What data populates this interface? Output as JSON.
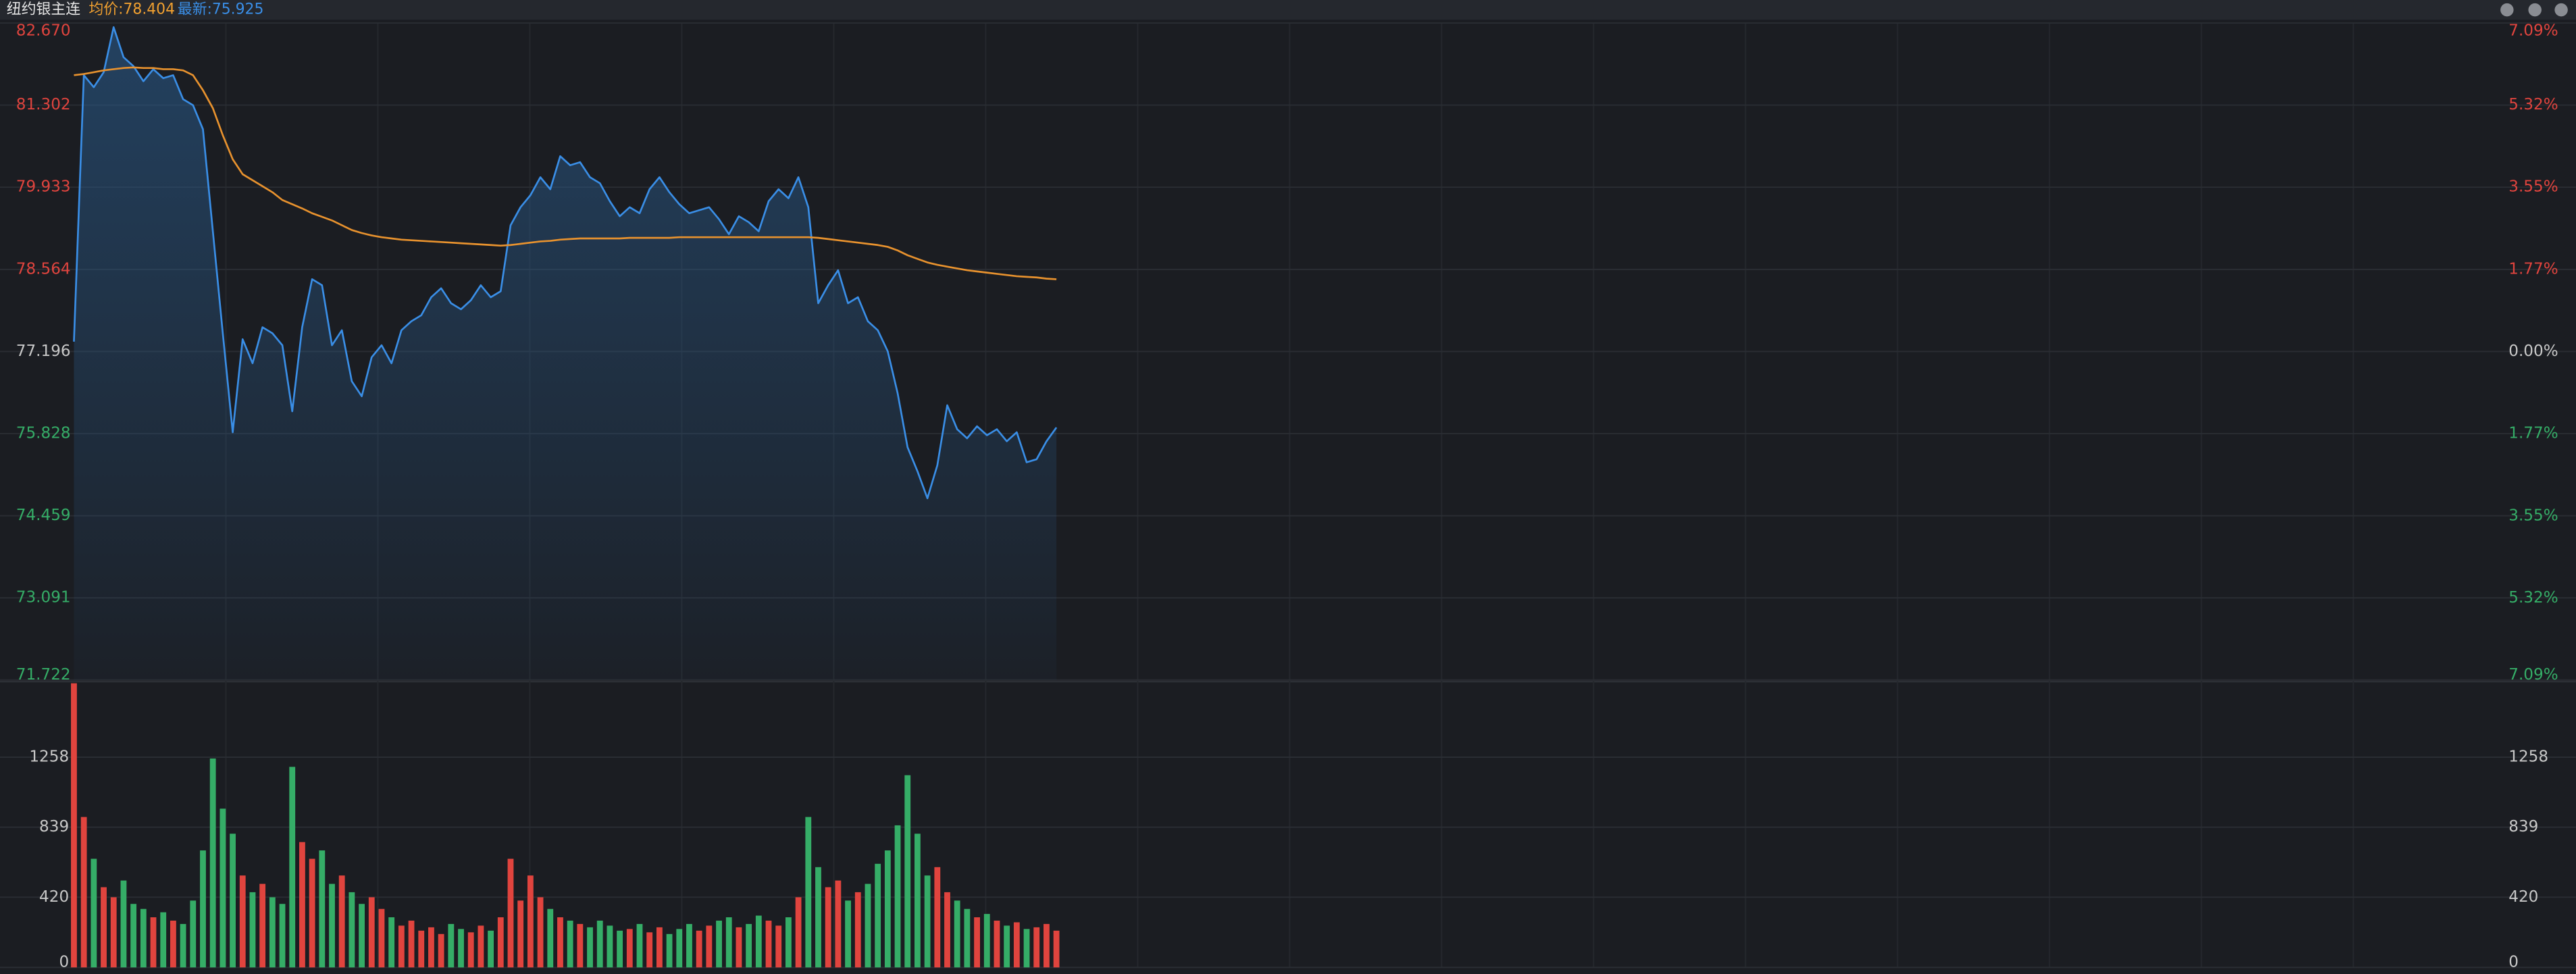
{
  "header": {
    "title": "纽约银主连",
    "avg": "均价:78.404",
    "latest": "最新:75.925"
  },
  "chart_data": [
    {
      "type": "line",
      "xlim": [
        0,
        245
      ],
      "ylim": [
        71.722,
        82.67
      ],
      "yticks": [
        {
          "value": 82.67,
          "label": "82.670"
        },
        81.302,
        79.933,
        78.564,
        77.196,
        75.828,
        74.459,
        73.091,
        71.722
      ],
      "y2lim": [
        -7.09,
        7.09
      ],
      "y2ticks": [
        {
          "value": 7.09,
          "label": "7.09%"
        },
        {
          "value": 5.32,
          "label": "5.32%"
        },
        {
          "value": 3.55,
          "label": "3.55%"
        },
        {
          "value": 1.77,
          "label": "1.77%"
        },
        {
          "value": 0,
          "label": "0.00%"
        },
        {
          "value": -1.77,
          "label": "1.77%"
        },
        {
          "value": -3.55,
          "label": "3.55%"
        },
        {
          "value": -5.32,
          "label": "5.32%"
        },
        {
          "value": -7.09,
          "label": "7.09%"
        }
      ],
      "grid": true,
      "up_color": "#e0443e",
      "down_color": "#35ad67",
      "flat_color": "#c8c8c8",
      "series": [
        {
          "color": "#3a8ee6",
          "area": true,
          "values": [
            77.36,
            81.8,
            81.6,
            81.85,
            82.6,
            82.1,
            81.95,
            81.7,
            81.9,
            81.75,
            81.8,
            81.4,
            81.3,
            80.9,
            79.2,
            77.5,
            75.85,
            77.4,
            77.0,
            77.6,
            77.5,
            77.3,
            76.2,
            77.6,
            78.4,
            78.3,
            77.3,
            77.55,
            76.7,
            76.45,
            77.1,
            77.3,
            77.0,
            77.55,
            77.7,
            77.8,
            78.1,
            78.25,
            78.0,
            77.9,
            78.05,
            78.3,
            78.1,
            78.2,
            79.3,
            79.6,
            79.8,
            80.1,
            79.9,
            80.45,
            80.3,
            80.35,
            80.1,
            80.0,
            79.7,
            79.45,
            79.6,
            79.5,
            79.9,
            80.1,
            79.85,
            79.65,
            79.5,
            79.55,
            79.6,
            79.4,
            79.15,
            79.45,
            79.35,
            79.2,
            79.7,
            79.9,
            79.75,
            80.1,
            79.6,
            78.0,
            78.3,
            78.55,
            78.0,
            78.1,
            77.7,
            77.55,
            77.2,
            76.5,
            75.6,
            75.2,
            74.75,
            75.3,
            76.3,
            75.9,
            75.75,
            75.95,
            75.8,
            75.9,
            75.7,
            75.85,
            75.35,
            75.4,
            75.7,
            75.93
          ]
        },
        {
          "color": "#e8922e",
          "values": [
            81.8,
            81.82,
            81.85,
            81.88,
            81.9,
            81.92,
            81.93,
            81.92,
            81.92,
            81.9,
            81.9,
            81.88,
            81.8,
            81.55,
            81.25,
            80.8,
            80.4,
            80.15,
            80.05,
            79.95,
            79.85,
            79.72,
            79.65,
            79.58,
            79.5,
            79.44,
            79.38,
            79.3,
            79.22,
            79.17,
            79.13,
            79.1,
            79.08,
            79.06,
            79.05,
            79.04,
            79.03,
            79.02,
            79.01,
            79.0,
            78.99,
            78.98,
            78.97,
            78.96,
            78.97,
            78.99,
            79.01,
            79.03,
            79.04,
            79.06,
            79.07,
            79.08,
            79.08,
            79.08,
            79.08,
            79.08,
            79.09,
            79.09,
            79.09,
            79.09,
            79.09,
            79.1,
            79.1,
            79.1,
            79.1,
            79.1,
            79.1,
            79.1,
            79.1,
            79.1,
            79.1,
            79.1,
            79.1,
            79.1,
            79.1,
            79.09,
            79.07,
            79.05,
            79.03,
            79.01,
            78.99,
            78.97,
            78.94,
            78.88,
            78.8,
            78.74,
            78.68,
            78.64,
            78.61,
            78.58,
            78.55,
            78.53,
            78.51,
            78.49,
            78.47,
            78.45,
            78.44,
            78.43,
            78.41,
            78.4
          ]
        }
      ]
    },
    {
      "type": "bar",
      "xlim": [
        0,
        245
      ],
      "ylim": [
        0,
        1700
      ],
      "yticks": [
        0,
        420,
        839,
        1258
      ],
      "grid": true,
      "up_color": "#e0443e",
      "down_color": "#35ad67",
      "values": [
        1700,
        900,
        650,
        480,
        420,
        520,
        380,
        350,
        300,
        330,
        280,
        260,
        400,
        700,
        1250,
        950,
        800,
        550,
        450,
        500,
        420,
        380,
        1200,
        750,
        650,
        700,
        500,
        550,
        450,
        380,
        420,
        350,
        300,
        250,
        280,
        220,
        240,
        200,
        260,
        230,
        210,
        250,
        220,
        300,
        650,
        400,
        550,
        420,
        350,
        300,
        280,
        260,
        240,
        280,
        250,
        220,
        230,
        260,
        210,
        240,
        200,
        230,
        260,
        220,
        250,
        280,
        300,
        240,
        260,
        310,
        280,
        250,
        300,
        420,
        900,
        600,
        480,
        520,
        400,
        450,
        500,
        620,
        700,
        850,
        1150,
        800,
        550,
        600,
        450,
        400,
        350,
        300,
        320,
        280,
        250,
        270,
        230,
        240,
        260,
        220
      ]
    }
  ]
}
